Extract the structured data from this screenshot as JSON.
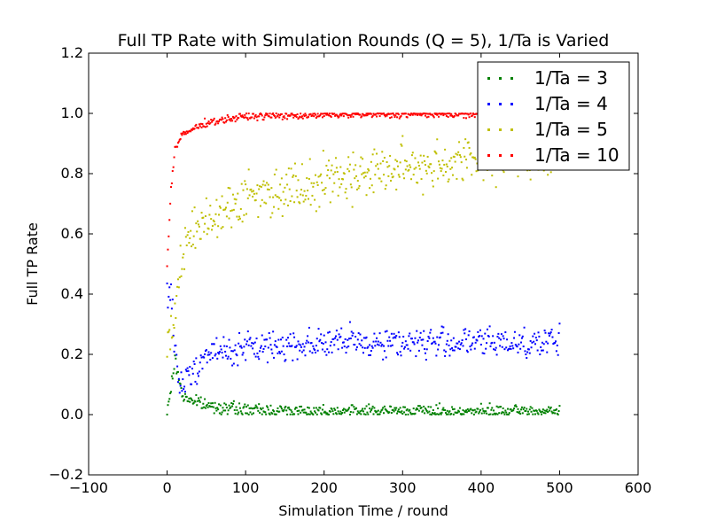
{
  "chart_data": {
    "type": "scatter",
    "title": "Full TP Rate with Simulation Rounds (Q = 5), 1/Ta is Varied",
    "xlabel": "Simulation Time / round",
    "ylabel": "Full TP Rate",
    "xlim": [
      -100,
      600
    ],
    "ylim": [
      -0.2,
      1.2
    ],
    "xticks": [
      -100,
      0,
      100,
      200,
      300,
      400,
      500,
      600
    ],
    "yticks": [
      -0.2,
      0.0,
      0.2,
      0.4,
      0.6,
      0.8,
      1.0,
      1.2
    ],
    "xtick_labels": [
      "−100",
      "0",
      "100",
      "200",
      "300",
      "400",
      "500",
      "600"
    ],
    "ytick_labels": [
      "−0.2",
      "0.0",
      "0.2",
      "0.4",
      "0.6",
      "0.8",
      "1.0",
      "1.2"
    ],
    "grid": false,
    "legend_position": "top-right",
    "x_range_of_points": [
      0,
      500
    ],
    "series": [
      {
        "name": "1/Ta = 3",
        "color": "#008000",
        "trend": "starts near 0.0, spikes to ~0.18 around x=10, decays to ~0.01 plateau by x=100",
        "representative_points": [
          [
            0,
            0.0
          ],
          [
            10,
            0.18
          ],
          [
            20,
            0.06
          ],
          [
            50,
            0.03
          ],
          [
            100,
            0.015
          ],
          [
            200,
            0.012
          ],
          [
            300,
            0.012
          ],
          [
            400,
            0.01
          ],
          [
            500,
            0.01
          ]
        ],
        "plateau": 0.01,
        "noise": 0.01
      },
      {
        "name": "1/Ta = 4",
        "color": "#0000ff",
        "trend": "starts at 0.4 near x=5, drops to ~0.08, rises to ~0.24 plateau by x=100",
        "representative_points": [
          [
            5,
            0.4
          ],
          [
            15,
            0.08
          ],
          [
            30,
            0.14
          ],
          [
            50,
            0.2
          ],
          [
            100,
            0.22
          ],
          [
            200,
            0.24
          ],
          [
            300,
            0.24
          ],
          [
            400,
            0.24
          ],
          [
            500,
            0.24
          ]
        ],
        "plateau": 0.24,
        "noise": 0.025
      },
      {
        "name": "1/Ta = 5",
        "color": "#bfbf00",
        "trend": "starts near 0.25, rises through 0.6–0.7 by x=50, approaches ~0.86 by x=500",
        "representative_points": [
          [
            5,
            0.25
          ],
          [
            20,
            0.55
          ],
          [
            50,
            0.65
          ],
          [
            100,
            0.72
          ],
          [
            200,
            0.78
          ],
          [
            300,
            0.82
          ],
          [
            400,
            0.85
          ],
          [
            500,
            0.86
          ]
        ],
        "plateau": 0.86,
        "noise": 0.04
      },
      {
        "name": "1/Ta = 10",
        "color": "#ff0000",
        "trend": "starts near 0.5 at x=0, rises to ~0.95 by x=20, ~1.0 plateau by x=100",
        "representative_points": [
          [
            0,
            0.5
          ],
          [
            5,
            0.75
          ],
          [
            10,
            0.88
          ],
          [
            20,
            0.93
          ],
          [
            50,
            0.97
          ],
          [
            100,
            0.99
          ],
          [
            200,
            0.995
          ],
          [
            500,
            1.0
          ]
        ],
        "plateau": 1.0,
        "noise": 0.006
      }
    ]
  }
}
